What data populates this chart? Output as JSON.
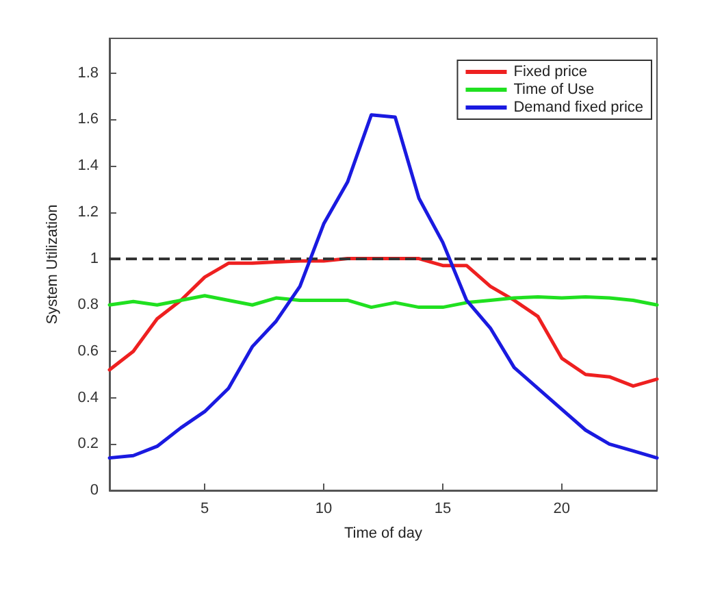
{
  "chart_data": {
    "type": "line",
    "xlabel": "Time of day",
    "ylabel": "System Utilization",
    "x": [
      1,
      2,
      3,
      4,
      5,
      6,
      7,
      8,
      9,
      10,
      11,
      12,
      13,
      14,
      15,
      16,
      17,
      18,
      19,
      20,
      21,
      22,
      23,
      24
    ],
    "series": [
      {
        "name": "Fixed price",
        "color": "#ee2020",
        "values": [
          0.52,
          0.6,
          0.74,
          0.82,
          0.92,
          0.98,
          0.98,
          0.985,
          0.99,
          0.99,
          1.0,
          1.0,
          1.0,
          1.0,
          0.97,
          0.97,
          0.88,
          0.82,
          0.75,
          0.57,
          0.5,
          0.49,
          0.45,
          0.48
        ]
      },
      {
        "name": "Time of Use",
        "color": "#20e020",
        "values": [
          0.8,
          0.815,
          0.8,
          0.82,
          0.84,
          0.82,
          0.8,
          0.83,
          0.82,
          0.82,
          0.82,
          0.79,
          0.81,
          0.79,
          0.79,
          0.81,
          0.82,
          0.83,
          0.835,
          0.83,
          0.835,
          0.83,
          0.82,
          0.8
        ]
      },
      {
        "name": "Demand fixed price",
        "color": "#1a1ae0",
        "values": [
          0.14,
          0.15,
          0.19,
          0.27,
          0.34,
          0.44,
          0.62,
          0.73,
          0.88,
          1.15,
          1.33,
          1.62,
          1.61,
          1.26,
          1.07,
          0.82,
          0.7,
          0.53,
          0.44,
          0.35,
          0.26,
          0.2,
          0.17,
          0.14
        ]
      }
    ],
    "xlim": [
      1,
      24
    ],
    "xticks": [
      5,
      10,
      15,
      20
    ],
    "ylim": [
      0,
      1.95
    ],
    "yticks": [
      0,
      0.2,
      0.4,
      0.6,
      0.8,
      1,
      1.2,
      1.4,
      1.6,
      1.8
    ],
    "ref_lines": [
      {
        "axis": "y",
        "value": 1,
        "color": "#333333",
        "line_style": "dashed"
      }
    ],
    "grid": false,
    "legend": "top right",
    "marker": "none",
    "line_style": "solid"
  }
}
